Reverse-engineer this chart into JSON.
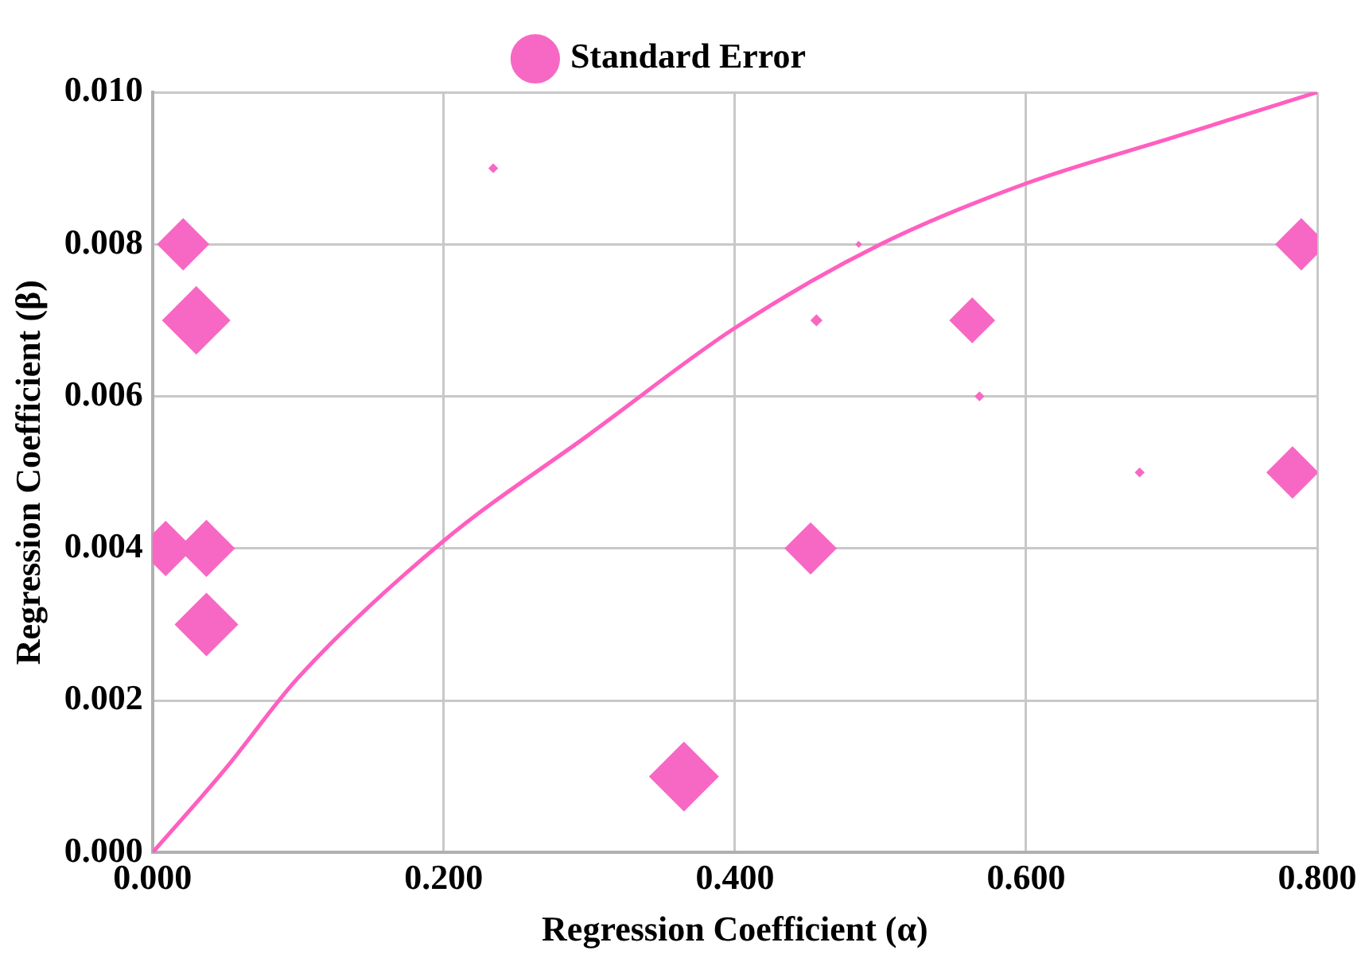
{
  "chart_data": {
    "type": "bubble",
    "xlabel": "Regression Coefficient (α)",
    "ylabel": "Regression Coefficient (β)",
    "xlim": [
      0,
      0.8
    ],
    "ylim": [
      0,
      0.01
    ],
    "xticks": [
      {
        "value": 0,
        "label": "0.000"
      },
      {
        "value": 0.2,
        "label": "0.200"
      },
      {
        "value": 0.4,
        "label": "0.400"
      },
      {
        "value": 0.6,
        "label": "0.600"
      },
      {
        "value": 0.8,
        "label": "0.800"
      }
    ],
    "yticks": [
      {
        "value": 0,
        "label": "0.000"
      },
      {
        "value": 0.002,
        "label": "0.002"
      },
      {
        "value": 0.004,
        "label": "0.004"
      },
      {
        "value": 0.006,
        "label": "0.006"
      },
      {
        "value": 0.008,
        "label": "0.008"
      },
      {
        "value": 0.01,
        "label": "0.010"
      }
    ],
    "grid": true,
    "legend": "top",
    "series": [
      {
        "name": "Standard Error",
        "marker": "diamond",
        "color": "#f768c4",
        "x": [
          0.021,
          0.03,
          0.009,
          0.037,
          0.037,
          0.365,
          0.234,
          0.485,
          0.456,
          0.563,
          0.568,
          0.452,
          0.678,
          0.789,
          0.783
        ],
        "values": [
          0.008,
          0.007,
          0.004,
          0.004,
          0.003,
          0.001,
          0.009,
          0.008,
          0.007,
          0.007,
          0.006,
          0.004,
          0.005,
          0.008,
          0.005
        ],
        "sizes": [
          0.56,
          0.96,
          0.63,
          0.67,
          0.83,
          1,
          0.02,
          0.01,
          0.03,
          0.43,
          0.02,
          0.56,
          0.02,
          0.56,
          0.56
        ]
      },
      {
        "type": "line",
        "color": "#ff5fc0",
        "x": [
          0,
          0.05,
          0.1,
          0.2,
          0.3,
          0.4,
          0.5,
          0.6,
          0.7,
          0.8
        ],
        "values": [
          0,
          0.0011,
          0.0023,
          0.0041,
          0.0055,
          0.0069,
          0.008,
          0.0088,
          0.0094,
          0.01
        ]
      }
    ]
  }
}
